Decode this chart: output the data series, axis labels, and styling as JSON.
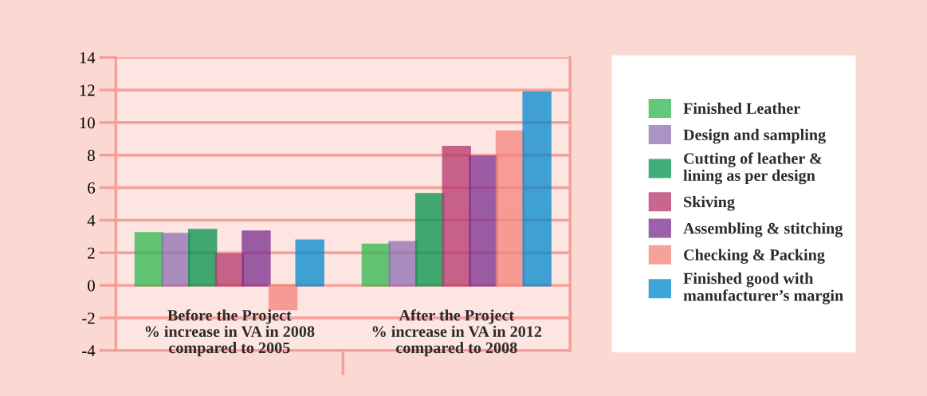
{
  "chart_data": {
    "type": "bar",
    "categories": [
      "Before the Project\n% increase in VA in 2008\ncompared to 2005",
      "After the Project\n% increase in VA in 2012\ncompared to 2008"
    ],
    "series": [
      {
        "name": "Finished Leather",
        "color": "#2db84d",
        "values": [
          3.2,
          2.5
        ]
      },
      {
        "name": "Design and sampling",
        "color": "#8f6fb3",
        "values": [
          3.15,
          2.65
        ]
      },
      {
        "name": "Cutting of leather &\nlining as per design",
        "color": "#00934a",
        "values": [
          3.4,
          5.6
        ]
      },
      {
        "name": "Skiving",
        "color": "#b5356b",
        "values": [
          1.9,
          8.5
        ]
      },
      {
        "name": "Assembling & stitching",
        "color": "#7b2d8e",
        "values": [
          3.3,
          7.9
        ]
      },
      {
        "name": "Checking & Packing",
        "color": "#f4837a",
        "values": [
          -1.45,
          9.45
        ]
      },
      {
        "name": "Finished good with\nmanufacturer’s margin",
        "color": "#0089cf",
        "values": [
          2.75,
          11.85
        ]
      }
    ],
    "ylim": [
      -4,
      14
    ],
    "yticks": [
      {
        "value": -4,
        "label": "-4"
      },
      {
        "value": -2,
        "label": "-2"
      },
      0,
      2,
      4,
      6,
      8,
      10,
      12,
      14
    ],
    "grid": "y",
    "legend": "right"
  }
}
